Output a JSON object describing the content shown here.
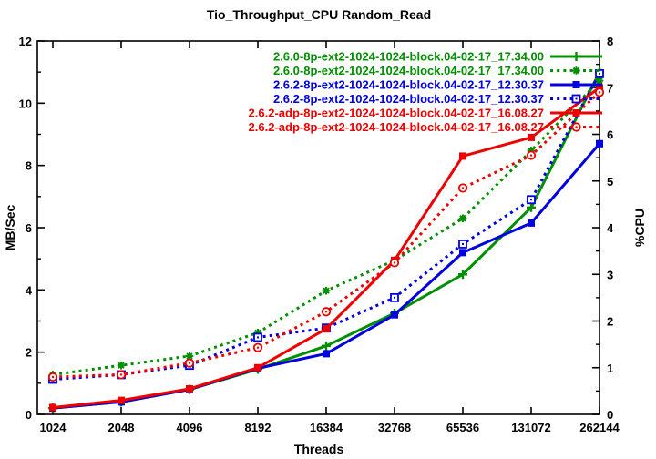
{
  "chart_data": {
    "type": "line",
    "title": "Tio_Throughput_CPU Random_Read",
    "xlabel": "Threads",
    "ylabel": "MB/Sec",
    "y2label": "%CPU",
    "x_scale": "log2",
    "categories": [
      "1024",
      "2048",
      "4096",
      "8192",
      "16384",
      "32768",
      "65536",
      "131072",
      "262144"
    ],
    "ylim": [
      0,
      12
    ],
    "y2lim": [
      0,
      8
    ],
    "yticks": [
      0,
      2,
      4,
      6,
      8,
      10,
      12
    ],
    "y2ticks": [
      0,
      1,
      2,
      3,
      4,
      5,
      6,
      7,
      8
    ],
    "grid": false,
    "legend_position": "top-right-inside",
    "series": [
      {
        "name": "2.6.0-8p-ext2-1024-1024-block.04-02-17_17.34.00",
        "axis": "left",
        "unit": "MB/Sec",
        "color": "#008f00",
        "style": "solid",
        "marker": "plus",
        "values": [
          0.2,
          0.4,
          0.8,
          1.45,
          2.2,
          3.25,
          4.5,
          6.65,
          11.0
        ]
      },
      {
        "name": "2.6.0-8p-ext2-1024-1024-block.04-02-17_17.34.00",
        "axis": "right",
        "unit": "%CPU",
        "color": "#008f00",
        "style": "dotted",
        "marker": "star",
        "values": [
          0.85,
          1.05,
          1.25,
          1.75,
          2.65,
          3.3,
          4.2,
          5.65,
          7.15
        ]
      },
      {
        "name": "2.6.2-8p-ext2-1024-1024-block.04-02-17_12.30.37",
        "axis": "left",
        "unit": "MB/Sec",
        "color": "#0000e0",
        "style": "solid",
        "marker": "square",
        "values": [
          0.2,
          0.4,
          0.8,
          1.48,
          1.95,
          3.2,
          5.2,
          6.15,
          8.7
        ]
      },
      {
        "name": "2.6.2-8p-ext2-1024-1024-block.04-02-17_12.30.37",
        "axis": "right",
        "unit": "%CPU",
        "color": "#0000e0",
        "style": "dotted",
        "marker": "open-square",
        "values": [
          0.75,
          0.85,
          1.05,
          1.65,
          1.85,
          2.5,
          3.65,
          4.6,
          7.3
        ]
      },
      {
        "name": "2.6.2-adp-8p-ext2-1024-1024-block.04-02-17_16.08.27",
        "axis": "left",
        "unit": "MB/Sec",
        "color": "#ee0000",
        "style": "solid",
        "marker": "square",
        "values": [
          0.22,
          0.45,
          0.82,
          1.5,
          2.75,
          4.95,
          8.3,
          8.9,
          10.5
        ]
      },
      {
        "name": "2.6.2-adp-8p-ext2-1024-1024-block.04-02-17_16.08.27",
        "axis": "right",
        "unit": "%CPU",
        "color": "#ee0000",
        "style": "dotted",
        "marker": "open-circle",
        "values": [
          0.8,
          0.85,
          1.1,
          1.43,
          2.2,
          3.25,
          4.85,
          5.55,
          6.9
        ]
      }
    ]
  }
}
